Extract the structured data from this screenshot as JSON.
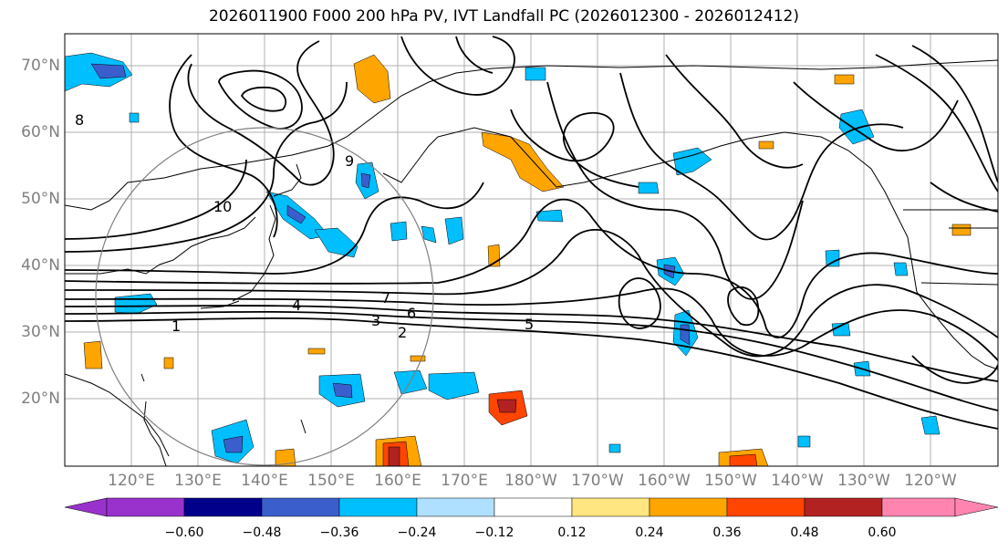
{
  "title": "2026011900 F000 200 hPa PV, IVT Landfall PC (2026012300 - 2026012412)",
  "lat_labels": [
    "70°N",
    "60°N",
    "50°N",
    "40°N",
    "30°N",
    "20°N"
  ],
  "lon_labels": [
    "120°E",
    "130°E",
    "140°E",
    "150°E",
    "160°E",
    "170°E",
    "180°W",
    "170°W",
    "160°W",
    "150°W",
    "140°W",
    "130°W",
    "120°W"
  ],
  "colorbar": {
    "ticks": [
      "−0.60",
      "−0.48",
      "−0.36",
      "−0.24",
      "−0.12",
      "0.12",
      "0.24",
      "0.36",
      "0.48",
      "0.60"
    ],
    "colors": [
      "#9932cc",
      "#00008b",
      "#3a5fcd",
      "#00bfff",
      "#b0e0ff",
      "#ffffff",
      "#ffe680",
      "#ffa500",
      "#ff4500",
      "#b22222",
      "#ff85b0"
    ]
  },
  "contour_labels": [
    "1",
    "2",
    "3",
    "4",
    "5",
    "6",
    "7",
    "8",
    "9",
    "10"
  ],
  "colors": {
    "land": "#000000",
    "grid": "#b0b0b0",
    "contour": "#000000",
    "circle": "#808080"
  }
}
